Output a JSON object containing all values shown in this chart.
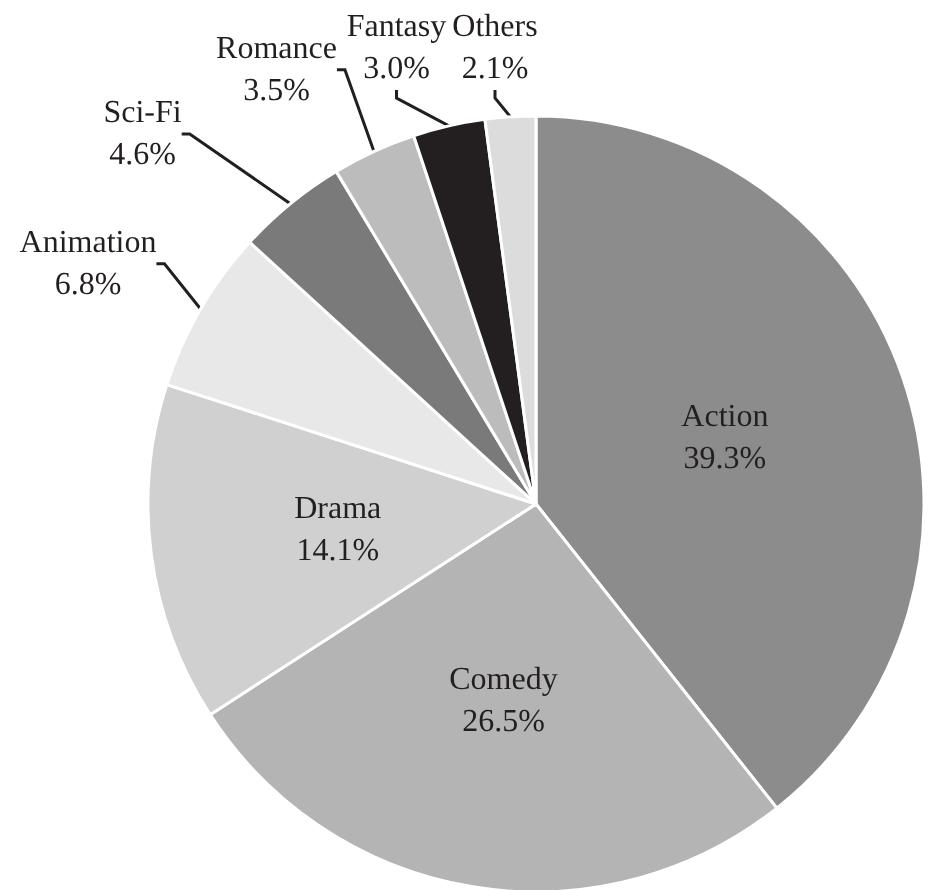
{
  "chart_data": {
    "type": "pie",
    "categories": [
      "Action",
      "Comedy",
      "Drama",
      "Animation",
      "Sci-Fi",
      "Romance",
      "Fantasy",
      "Others"
    ],
    "values": [
      39.3,
      26.5,
      14.1,
      6.8,
      4.6,
      3.5,
      3.0,
      2.1
    ],
    "value_labels": [
      "39.3%",
      "26.5%",
      "14.1%",
      "6.8%",
      "4.6%",
      "3.5%",
      "3.0%",
      "2.1%"
    ],
    "colors": [
      "#8c8c8c",
      "#b4b4b4",
      "#d0d0d0",
      "#e8e8e8",
      "#7a7a7a",
      "#bcbcbc",
      "#231f20",
      "#dcdcdc"
    ]
  }
}
